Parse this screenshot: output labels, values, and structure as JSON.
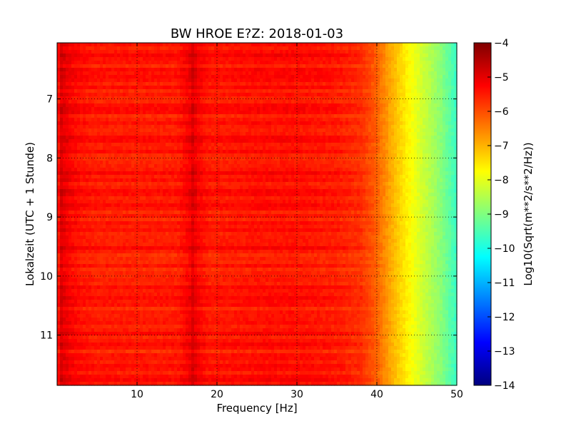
{
  "chart_data": {
    "type": "heatmap",
    "title": "BW HROE E?Z: 2018-01-03",
    "xlabel": "Frequency [Hz]",
    "ylabel": "Lokalzeit (UTC + 1 Stunde)",
    "xlim": [
      0,
      50
    ],
    "ylim": [
      11.85,
      6.05
    ],
    "x_ticks": [
      10,
      20,
      30,
      40,
      50
    ],
    "x_tick_labels": [
      "10",
      "20",
      "30",
      "40",
      "50"
    ],
    "y_ticks": [
      7,
      8,
      9,
      10,
      11
    ],
    "y_tick_labels": [
      "7",
      "8",
      "9",
      "10",
      "11"
    ],
    "grid": true,
    "colormap": "jet",
    "colorbar": {
      "label": "Log10(Sqrt(m**2/s**2/Hz))",
      "range": [
        -14,
        -4
      ],
      "ticks": [
        -4,
        -5,
        -6,
        -7,
        -8,
        -9,
        -10,
        -11,
        -12,
        -13,
        -14
      ],
      "tick_labels": [
        "−4",
        "−5",
        "−6",
        "−7",
        "−8",
        "−9",
        "−10",
        "−11",
        "−12",
        "−13",
        "−14"
      ]
    },
    "z_profile_by_frequency": {
      "frequency_hz": [
        0,
        0.5,
        1.5,
        3,
        5,
        10,
        15,
        16.5,
        17,
        17.5,
        19,
        25,
        30,
        35,
        38,
        40,
        42,
        44,
        46,
        48,
        50
      ],
      "log10_amplitude": [
        -5.6,
        -4.9,
        -5.2,
        -5.4,
        -5.5,
        -5.5,
        -5.5,
        -5.2,
        -4.9,
        -5.2,
        -5.5,
        -5.4,
        -5.4,
        -5.5,
        -5.7,
        -6.2,
        -7.0,
        -7.7,
        -8.3,
        -8.9,
        -9.7
      ]
    }
  }
}
